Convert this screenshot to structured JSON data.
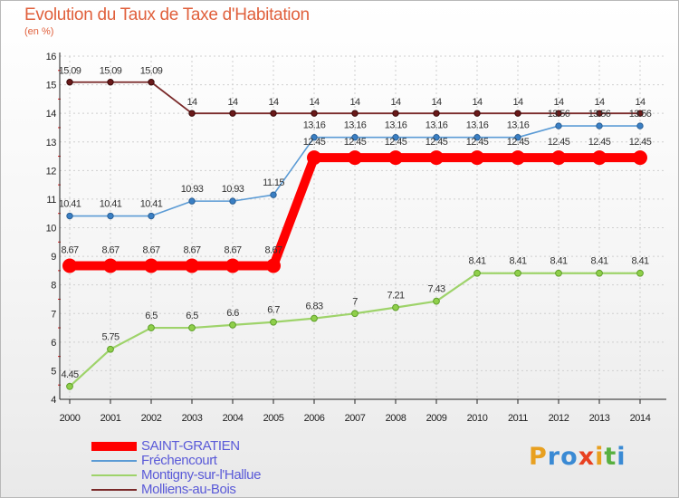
{
  "chart_data": {
    "type": "line",
    "title": "Evolution du Taux de Taxe d'Habitation",
    "subtitle": "(en %)",
    "x": [
      "2000",
      "2001",
      "2002",
      "2003",
      "2004",
      "2005",
      "2006",
      "2007",
      "2008",
      "2009",
      "2010",
      "2011",
      "2012",
      "2013",
      "2014"
    ],
    "ylim": [
      4,
      16
    ],
    "yticks": [
      "4",
      "5",
      "6",
      "7",
      "8",
      "9",
      "10",
      "11",
      "12",
      "13",
      "14",
      "15",
      "16"
    ],
    "grid": true,
    "legend_position": "bottom-left",
    "series": [
      {
        "name": "SAINT-GRATIEN",
        "color": "#ff0000",
        "values": [
          8.67,
          8.67,
          8.67,
          8.67,
          8.67,
          8.67,
          12.45,
          12.45,
          12.45,
          12.45,
          12.45,
          12.45,
          12.45,
          12.45,
          12.45
        ],
        "labels": [
          "8.67",
          "8.67",
          "8.67",
          "8.67",
          "8.67",
          "8.67",
          "12.45",
          "12.45",
          "12.45",
          "12.45",
          "12.45",
          "12.45",
          "12.45",
          "12.45",
          "12.45"
        ]
      },
      {
        "name": "Fréchencourt",
        "color": "#5b9bd5",
        "values": [
          10.41,
          10.41,
          10.41,
          10.93,
          10.93,
          11.15,
          13.16,
          13.16,
          13.16,
          13.16,
          13.16,
          13.16,
          13.56,
          13.56,
          13.56
        ],
        "labels": [
          "10.41",
          "10.41",
          "10.41",
          "10.93",
          "10.93",
          "11.15",
          "13.16",
          "13.16",
          "13.16",
          "13.16",
          "13.16",
          "13.16",
          "13.56",
          "13.56",
          "13.56"
        ]
      },
      {
        "name": "Montigny-sur-l'Hallue",
        "color": "#9ed36a",
        "values": [
          4.45,
          5.75,
          6.5,
          6.5,
          6.6,
          6.7,
          6.83,
          7,
          7.21,
          7.43,
          8.41,
          8.41,
          8.41,
          8.41,
          8.41
        ],
        "labels": [
          "4.45",
          "5.75",
          "6.5",
          "6.5",
          "6.6",
          "6.7",
          "6.83",
          "7",
          "7.21",
          "7.43",
          "8.41",
          "8.41",
          "8.41",
          "8.41",
          "8.41"
        ]
      },
      {
        "name": "Molliens-au-Bois",
        "color": "#7a2a2a",
        "values": [
          15.09,
          15.09,
          15.09,
          14,
          14,
          14,
          14,
          14,
          14,
          14,
          14,
          14,
          14,
          14,
          14
        ],
        "labels": [
          "15.09",
          "15.09",
          "15.09",
          "14",
          "14",
          "14",
          "14",
          "14",
          "14",
          "14",
          "14",
          "14",
          "14",
          "14",
          "14"
        ]
      }
    ]
  },
  "brand": {
    "letters": [
      "P",
      "r",
      "o",
      "x",
      "i",
      "t",
      "i"
    ]
  }
}
